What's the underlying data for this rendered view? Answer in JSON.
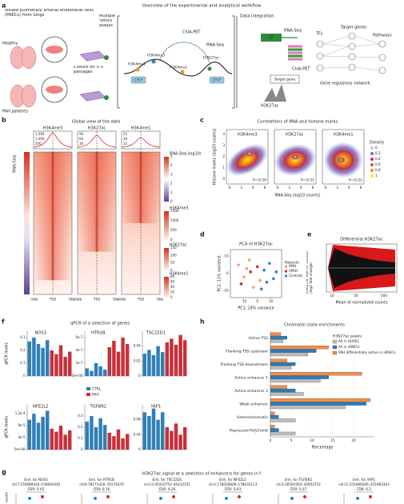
{
  "panel_a": {
    "letter": "a",
    "title": "Overview of the experimental and analytical workflow",
    "isolate": "Isolate pulmonary arterial endothelial cells (PAECs) from lungs",
    "healthy": "Healthy",
    "pah": "PAH patients",
    "culture": "Culture for 3–5 passages",
    "omics": "Multiple 'omics assays",
    "chiapet": "ChIA-PET",
    "rnaseq": "RNA-Seq",
    "marks": [
      "H3K4me1",
      "H3K4me3",
      "H3K4me1",
      "H3K27ac"
    ],
    "ctcf": [
      "CTCF",
      "CTCF"
    ],
    "integration": "Data integration",
    "rnaseq2": "RNA-Seq",
    "tf": "TF",
    "tfs": "TFs",
    "target_genes": "Target genes",
    "pathways": "Pathways",
    "chiapet2": "ChIA-PET",
    "target_gene": "Target gene",
    "h3k27ac": "H3K27ac",
    "grn": "Gene regulatory network"
  },
  "panel_b": {
    "letter": "b",
    "title": "Global view of the data",
    "columns": [
      "H3K4me3",
      "H3K27ac",
      "H3K4me1"
    ],
    "row_label": "RNA-Seq",
    "profile_ticks": [
      [
        "1,500",
        "1,000",
        "500"
      ],
      [
        "90",
        "60",
        "30"
      ],
      [
        "25",
        "20",
        "15"
      ]
    ],
    "x_labels": [
      [
        "–5kb",
        "TSS",
        "5kb"
      ],
      [
        "–5kb",
        "TSS",
        "5kb"
      ],
      [
        "–5kb",
        "TSS",
        "5kb"
      ]
    ],
    "colorbars": [
      {
        "title": "RNA-Seq (log10)",
        "ticks": [
          "5",
          "4",
          "3",
          "2",
          "1",
          "0"
        ]
      },
      {
        "title": "H3K4me3",
        "ticks": [
          "1500",
          "1000",
          "500",
          "0"
        ]
      },
      {
        "title": "H3K27ac",
        "ticks": [
          "150",
          "100",
          "50",
          "0"
        ]
      },
      {
        "title": "H3K4me1",
        "ticks": [
          "80",
          "60",
          "40",
          "20",
          "0"
        ]
      }
    ]
  },
  "panel_c": {
    "letter": "c",
    "title": "Correlations of RNA and histone marks",
    "plots": [
      {
        "name": "H3K4me3",
        "r": "R=0.59"
      },
      {
        "name": "H3K27ac",
        "r": "R=0.51"
      },
      {
        "name": "H3K4me1",
        "r": "R=0.22"
      }
    ],
    "y_label": "Histone marks (log10 counts)",
    "x_label": "RNA-Seq (log10 counts)",
    "x_ticks": [
      "0",
      "2",
      "4",
      "6"
    ],
    "y_ticks": [
      "4",
      "3",
      "2",
      "1",
      "0"
    ],
    "density_title": "Density",
    "density_ticks": [
      "0",
      "0.2",
      "0.4",
      "0.6",
      "0.8",
      "1"
    ]
  },
  "panel_d": {
    "letter": "d"
  },
  "panel_e": {
    "letter": "e",
    "title": "Differential H3K27ac",
    "y_label": "H3K27ac PAH vs. control (log2 fold change)",
    "x_label": "Mean of normalized counts",
    "x_ticks": [
      "10",
      "50",
      "500"
    ]
  },
  "panel_f": {
    "letter": "f",
    "title": "qPCR of a selection of genes",
    "y_labels": [
      "qPCR levels",
      "qPCR levels"
    ],
    "legend": [
      {
        "name": "CTRL",
        "color": "#2f7fb8"
      },
      {
        "name": "PAH",
        "color": "#c8313a"
      }
    ]
  },
  "panel_h": {
    "letter": "h"
  },
  "panel_g": {
    "letter": "g",
    "title": "H3K27ac signal at a selection of enhancers for genes in f",
    "y_label": "count",
    "items": [
      {
        "label": "Enh. for NOS3",
        "loc": "chr7:150689410–150692445",
        "fdr": "FDR: 0.05"
      },
      {
        "label": "Enh. for HTR1B",
        "loc": "chr6:78171416–78174470",
        "fdr": "FDR: 0.16"
      },
      {
        "label": "Enh. for TSC22D1",
        "loc": "chr13:45410753–45412251",
        "fdr": "FDR: 0.26"
      },
      {
        "label": "Enh. for NFE2L2",
        "loc": "chr2:178028609–178032113",
        "fdr": "FDR: 0.03"
      },
      {
        "label": "Enh. for TGFBR2",
        "loc": "chr3:30591954–30593753",
        "fdr": "FDR: 0.07"
      },
      {
        "label": "Enh. for YAP1",
        "loc": "chr11:101980406–101983343",
        "fdr": "FDR: 0.2"
      }
    ]
  },
  "chart_data": [
    {
      "type": "scatter",
      "title": "PCA of H3K27ac",
      "x_label": "PC1: 24% variance",
      "y_label": "PC2: 11% variance",
      "xlim": [
        -20,
        18
      ],
      "ylim": [
        -14,
        14
      ],
      "xticks": [
        -10,
        0,
        10
      ],
      "yticks": [
        -10,
        0,
        10
      ],
      "legend_title": "Patients",
      "series": [
        {
          "name": "iPAH",
          "color": "#f4a070",
          "x": [
            -14,
            -10,
            -6,
            -3,
            2,
            -8
          ],
          "values": [
            5,
            -2,
            8,
            -8,
            -4,
            3
          ]
        },
        {
          "name": "hPAH",
          "color": "#d7301f",
          "x": [
            -12,
            0,
            -5
          ],
          "values": [
            -6,
            4,
            1
          ]
        },
        {
          "name": "Controls",
          "color": "#3182bd",
          "x": [
            5,
            9,
            12,
            3,
            7,
            14
          ],
          "values": [
            2,
            6,
            -3,
            -9,
            -5,
            1
          ]
        }
      ]
    },
    {
      "type": "bar",
      "title": "NOS3",
      "ylim": [
        0,
        0.35
      ],
      "yticks": [
        0,
        0.1,
        0.2,
        0.3
      ],
      "series": [
        {
          "values": [
            0.27,
            0.3,
            0.25,
            0.22,
            0.28
          ]
        },
        {
          "values": [
            0.2,
            0.17,
            0.24,
            0.15,
            0.19
          ]
        }
      ]
    },
    {
      "type": "bar",
      "title": "HTR1B",
      "ylim": [
        0,
        7e-07
      ],
      "yticks": [
        {
          "value": 0,
          "label": "0e+00"
        },
        {
          "value": 2e-07,
          "label": "2e-7"
        },
        {
          "value": 4e-07,
          "label": "4e-7"
        },
        {
          "value": 6e-07,
          "label": "6e-7"
        }
      ],
      "series": [
        {
          "values": [
            1.2e-07,
            8e-08,
            2e-07,
            1.5e-07,
            1e-07
          ]
        },
        {
          "values": [
            4.5e-07,
            5.5e-07,
            3.8e-07,
            6e-07,
            5e-07
          ]
        }
      ]
    },
    {
      "type": "bar",
      "title": "TSC22D1",
      "ylim": [
        0,
        0.06
      ],
      "yticks": [
        0,
        0.02,
        0.04
      ],
      "series": [
        {
          "values": [
            0.03,
            0.035,
            0.028,
            0.04,
            0.032
          ]
        },
        {
          "values": [
            0.045,
            0.05,
            0.042,
            0.055,
            0.048
          ]
        }
      ]
    },
    {
      "type": "bar",
      "title": "NFE2L2",
      "ylim": [
        0,
        0.00015
      ],
      "yticks": [
        {
          "value": 0,
          "label": "0e+00"
        },
        {
          "value": 4e-05,
          "label": "4e-5"
        },
        {
          "value": 8e-05,
          "label": "8e-5"
        },
        {
          "value": 0.00012,
          "label": "1.2e-4"
        }
      ],
      "series": [
        {
          "values": [
            0.0001,
            0.00012,
            9e-05,
            0.00011,
            0.00013
          ]
        },
        {
          "values": [
            7e-05,
            6e-05,
            8e-05,
            5e-05,
            6.5e-05
          ]
        }
      ]
    },
    {
      "type": "bar",
      "title": "TGFBR2",
      "ylim": [
        0,
        0.4
      ],
      "yticks": [
        0,
        0.1,
        0.2,
        0.3
      ],
      "series": [
        {
          "values": [
            0.25,
            0.3,
            0.2,
            0.28,
            0.22
          ]
        },
        {
          "values": [
            0.15,
            0.12,
            0.18,
            0.1,
            0.14
          ]
        }
      ]
    },
    {
      "type": "bar",
      "title": "YAP1",
      "ylim": [
        0,
        0.12
      ],
      "yticks": [
        0,
        0.04,
        0.08
      ],
      "series": [
        {
          "values": [
            0.1,
            0.09,
            0.11,
            0.08,
            0.1
          ]
        },
        {
          "values": [
            0.06,
            0.05,
            0.07,
            0.04,
            0.06
          ]
        }
      ]
    },
    {
      "type": "hbar",
      "title": "Chromatin state enrichments",
      "x_label": "Percentage",
      "xlim": [
        0,
        25
      ],
      "xticks": [
        0,
        5,
        10,
        15,
        20
      ],
      "legend_title": "H3K27ac peaks:",
      "categories": [
        "Active TSS",
        "Flanking TSS upstream",
        "Flanking TSS downstream",
        "Active enhancer 1",
        "Active enhancer 2",
        "Weak enhancer",
        "Heterochromatin",
        "Repressed PolyComb"
      ],
      "series": [
        {
          "name": "All in HUVEC",
          "color": "#bdbdbd",
          "values": [
            3,
            9,
            5,
            12,
            8,
            18,
            6,
            6
          ]
        },
        {
          "name": "All in sPAECs",
          "color": "#2b7bba",
          "values": [
            4,
            11,
            6,
            14,
            6,
            23,
            2,
            2
          ]
        },
        {
          "name": "PAH differentially active in sPAECs",
          "color": "#f58d4a",
          "values": [
            2.5,
            14,
            4,
            22,
            4,
            24,
            1,
            1
          ]
        }
      ]
    }
  ]
}
